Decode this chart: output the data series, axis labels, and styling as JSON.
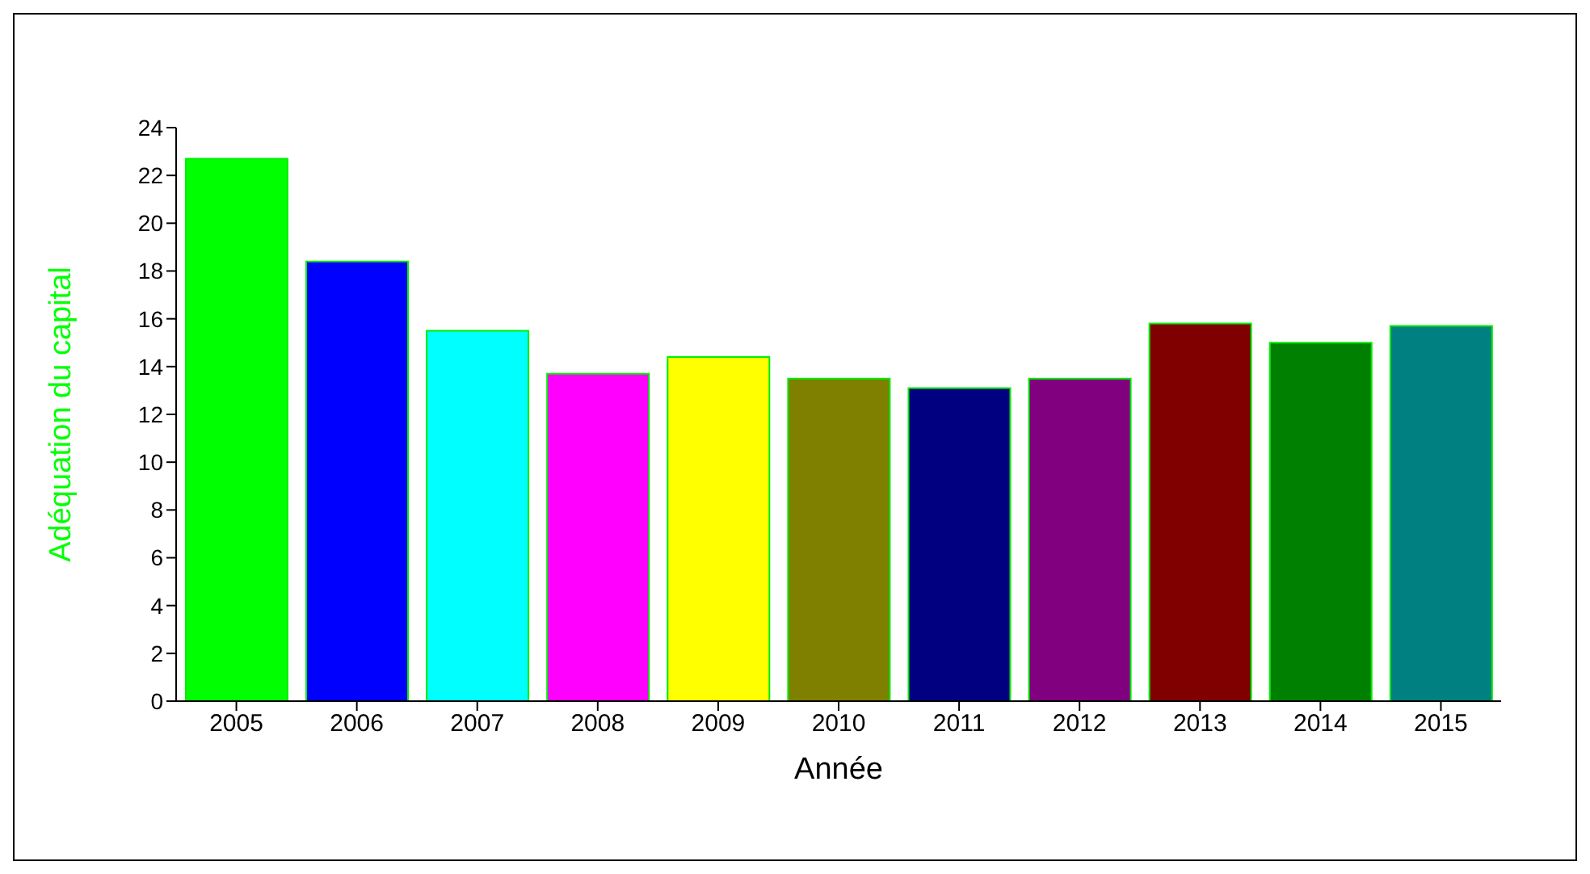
{
  "chart_data": {
    "type": "bar",
    "xlabel": "Année",
    "ylabel": "Adéquation du capital",
    "categories": [
      "2005",
      "2006",
      "2007",
      "2008",
      "2009",
      "2010",
      "2011",
      "2012",
      "2013",
      "2014",
      "2015"
    ],
    "values": [
      22.7,
      18.4,
      15.5,
      13.7,
      14.4,
      13.5,
      13.1,
      13.5,
      15.8,
      15.0,
      15.7
    ],
    "colors": [
      "#00ff00",
      "#0000ff",
      "#00ffff",
      "#ff00ff",
      "#ffff00",
      "#808000",
      "#000080",
      "#800080",
      "#800000",
      "#008000",
      "#008080"
    ],
    "ylim": [
      0,
      24
    ],
    "yticks": [
      0,
      2,
      4,
      6,
      8,
      10,
      12,
      14,
      16,
      18,
      20,
      22,
      24
    ],
    "grid": false
  }
}
